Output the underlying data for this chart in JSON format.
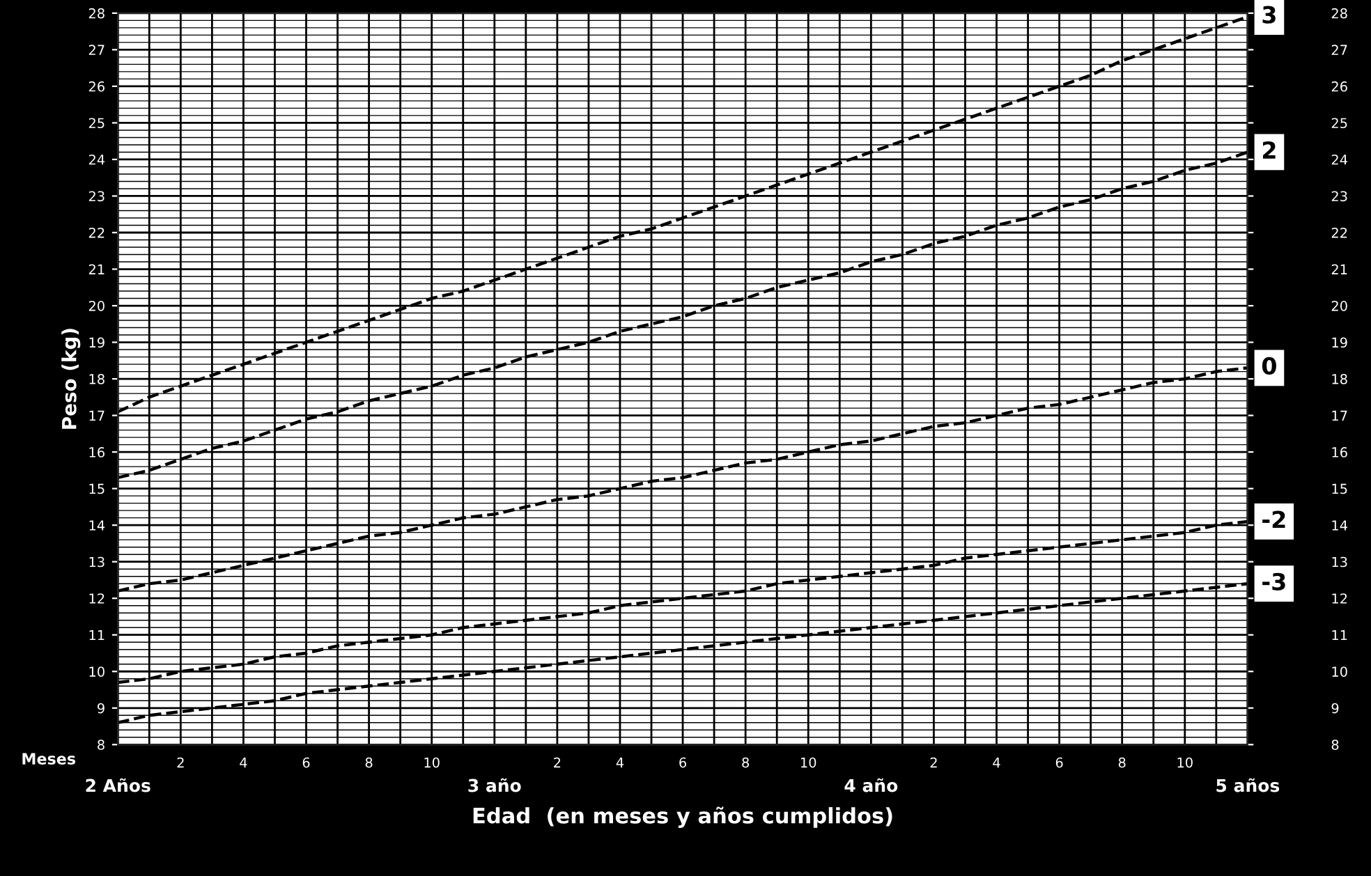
{
  "chart_data": {
    "type": "line",
    "xlabel": "Edad  (en meses y años cumplidos)",
    "ylabel": "Peso (kg)",
    "categories": [
      null,
      null,
      "2",
      null,
      "4",
      null,
      "6",
      null,
      "8",
      null,
      "10",
      null,
      null,
      null,
      "2",
      null,
      "4",
      null,
      "6",
      null,
      "8",
      null,
      "10",
      null,
      null,
      null,
      "2",
      null,
      "4",
      null,
      "6",
      null,
      "8",
      null,
      "10",
      null,
      null
    ],
    "series": [
      {
        "name": "3",
        "color": "#000000",
        "values": [
          17.1,
          17.5,
          17.8,
          18.1,
          18.4,
          18.7,
          19.0,
          19.3,
          19.6,
          19.9,
          20.2,
          20.4,
          20.7,
          21.0,
          21.3,
          21.6,
          21.9,
          22.1,
          22.4,
          22.7,
          23.0,
          23.3,
          23.6,
          23.9,
          24.2,
          24.5,
          24.8,
          25.1,
          25.4,
          25.7,
          26.0,
          26.3,
          26.7,
          27.0,
          27.3,
          27.6,
          27.9
        ]
      },
      {
        "name": "2",
        "color": "#000000",
        "values": [
          15.3,
          15.5,
          15.8,
          16.1,
          16.3,
          16.6,
          16.9,
          17.1,
          17.4,
          17.6,
          17.8,
          18.1,
          18.3,
          18.6,
          18.8,
          19.0,
          19.3,
          19.5,
          19.7,
          20.0,
          20.2,
          20.5,
          20.7,
          20.9,
          21.2,
          21.4,
          21.7,
          21.9,
          22.2,
          22.4,
          22.7,
          22.9,
          23.2,
          23.4,
          23.7,
          23.9,
          24.2
        ]
      },
      {
        "name": "0",
        "color": "#000000",
        "values": [
          12.2,
          12.4,
          12.5,
          12.7,
          12.9,
          13.1,
          13.3,
          13.5,
          13.7,
          13.8,
          14.0,
          14.2,
          14.3,
          14.5,
          14.7,
          14.8,
          15.0,
          15.2,
          15.3,
          15.5,
          15.7,
          15.8,
          16.0,
          16.2,
          16.3,
          16.5,
          16.7,
          16.8,
          17.0,
          17.2,
          17.3,
          17.5,
          17.7,
          17.9,
          18.0,
          18.2,
          18.3
        ]
      },
      {
        "name": "-2",
        "color": "#000000",
        "values": [
          9.7,
          9.8,
          10.0,
          10.1,
          10.2,
          10.4,
          10.5,
          10.7,
          10.8,
          10.9,
          11.0,
          11.2,
          11.3,
          11.4,
          11.5,
          11.6,
          11.8,
          11.9,
          12.0,
          12.1,
          12.2,
          12.4,
          12.5,
          12.6,
          12.7,
          12.8,
          12.9,
          13.1,
          13.2,
          13.3,
          13.4,
          13.5,
          13.6,
          13.7,
          13.8,
          14.0,
          14.1
        ]
      },
      {
        "name": "-3",
        "color": "#000000",
        "values": [
          8.6,
          8.8,
          8.9,
          9.0,
          9.1,
          9.2,
          9.4,
          9.5,
          9.6,
          9.7,
          9.8,
          9.9,
          10.0,
          10.1,
          10.2,
          10.3,
          10.4,
          10.5,
          10.6,
          10.7,
          10.8,
          10.9,
          11.0,
          11.1,
          11.2,
          11.3,
          11.4,
          11.5,
          11.6,
          11.7,
          11.8,
          11.9,
          12.0,
          12.1,
          12.2,
          12.3,
          12.4
        ]
      }
    ],
    "ylim": [
      8,
      28
    ],
    "yticks": [
      8,
      9,
      10,
      11,
      12,
      13,
      14,
      15,
      16,
      17,
      18,
      19,
      20,
      21,
      22,
      23,
      24,
      25,
      26,
      27,
      28
    ],
    "y2lim": [
      8,
      28
    ],
    "y2ticks": [
      8,
      9,
      10,
      11,
      12,
      13,
      14,
      15,
      16,
      17,
      18,
      19,
      20,
      21,
      22,
      23,
      24,
      25,
      26,
      27,
      28
    ],
    "annotations": [
      "Meses",
      "2 Años",
      "3 año",
      "4 año",
      "5 años"
    ],
    "grid": true,
    "line_style": "dashed",
    "marker": "none",
    "legend": false
  }
}
